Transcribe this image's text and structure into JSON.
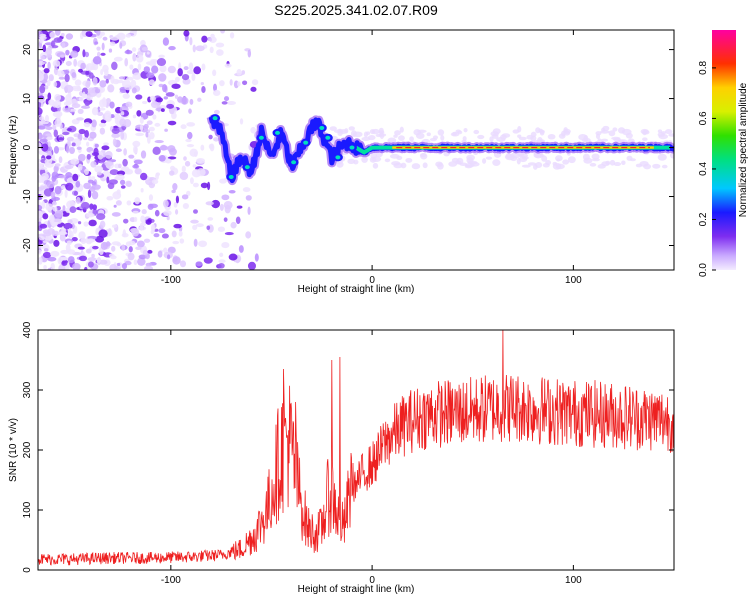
{
  "title": "S225.2025.341.02.07.R09",
  "chart_data": [
    {
      "type": "heatmap",
      "xlabel": "Height of straight line (km)",
      "ylabel": "Frequency (Hz)",
      "xlim": [
        -166,
        150
      ],
      "ylim": [
        -25,
        24
      ],
      "xticks": [
        -100,
        0,
        100
      ],
      "yticks": [
        -20,
        -10,
        0,
        10,
        20
      ],
      "colorbar": {
        "label": "Normalized spectral amplitude",
        "range": [
          0,
          0.95
        ],
        "ticks": [
          0.0,
          0.2,
          0.4,
          0.6,
          0.8
        ]
      },
      "ridge": {
        "x": [
          -80,
          -75,
          -70,
          -65,
          -60,
          -55,
          -50,
          -45,
          -40,
          -35,
          -30,
          -27,
          -24,
          -20,
          -16,
          -12,
          -8,
          -4,
          0,
          150
        ],
        "y": [
          6,
          3,
          -6,
          -2,
          -5,
          3,
          -2,
          3,
          -4,
          0,
          4,
          5,
          2,
          -2,
          0,
          1,
          0,
          -1,
          0,
          0
        ]
      }
    },
    {
      "type": "line",
      "xlabel": "Height of straight line (km)",
      "ylabel": "SNR (10 * v/v)",
      "xlim": [
        -166,
        150
      ],
      "ylim": [
        0,
        400
      ],
      "xticks": [
        -100,
        0,
        100
      ],
      "yticks": [
        0,
        100,
        200,
        300,
        400
      ],
      "series": [
        {
          "name": "SNR",
          "color": "#ee2020",
          "x": [
            -166,
            -150,
            -130,
            -110,
            -90,
            -75,
            -65,
            -58,
            -52,
            -48,
            -45,
            -42,
            -40,
            -38,
            -35,
            -32,
            -28,
            -25,
            -22,
            -20,
            -17,
            -14,
            -12,
            -10,
            -8,
            -5,
            -2,
            0,
            3,
            6,
            10,
            15,
            20,
            25,
            30,
            40,
            50,
            60,
            70,
            80,
            90,
            100,
            110,
            120,
            130,
            140,
            150
          ],
          "values": [
            18,
            18,
            20,
            20,
            22,
            25,
            35,
            60,
            100,
            160,
            200,
            220,
            200,
            160,
            110,
            70,
            60,
            70,
            120,
            130,
            90,
            70,
            110,
            150,
            140,
            160,
            170,
            175,
            190,
            210,
            225,
            240,
            250,
            255,
            260,
            262,
            265,
            270,
            272,
            268,
            265,
            262,
            260,
            258,
            255,
            252,
            250
          ],
          "peaks": {
            "x": [
              -44,
              -38,
              -20,
              -16,
              65
            ],
            "values": [
              335,
              280,
              350,
              355,
              400
            ]
          }
        }
      ]
    }
  ]
}
